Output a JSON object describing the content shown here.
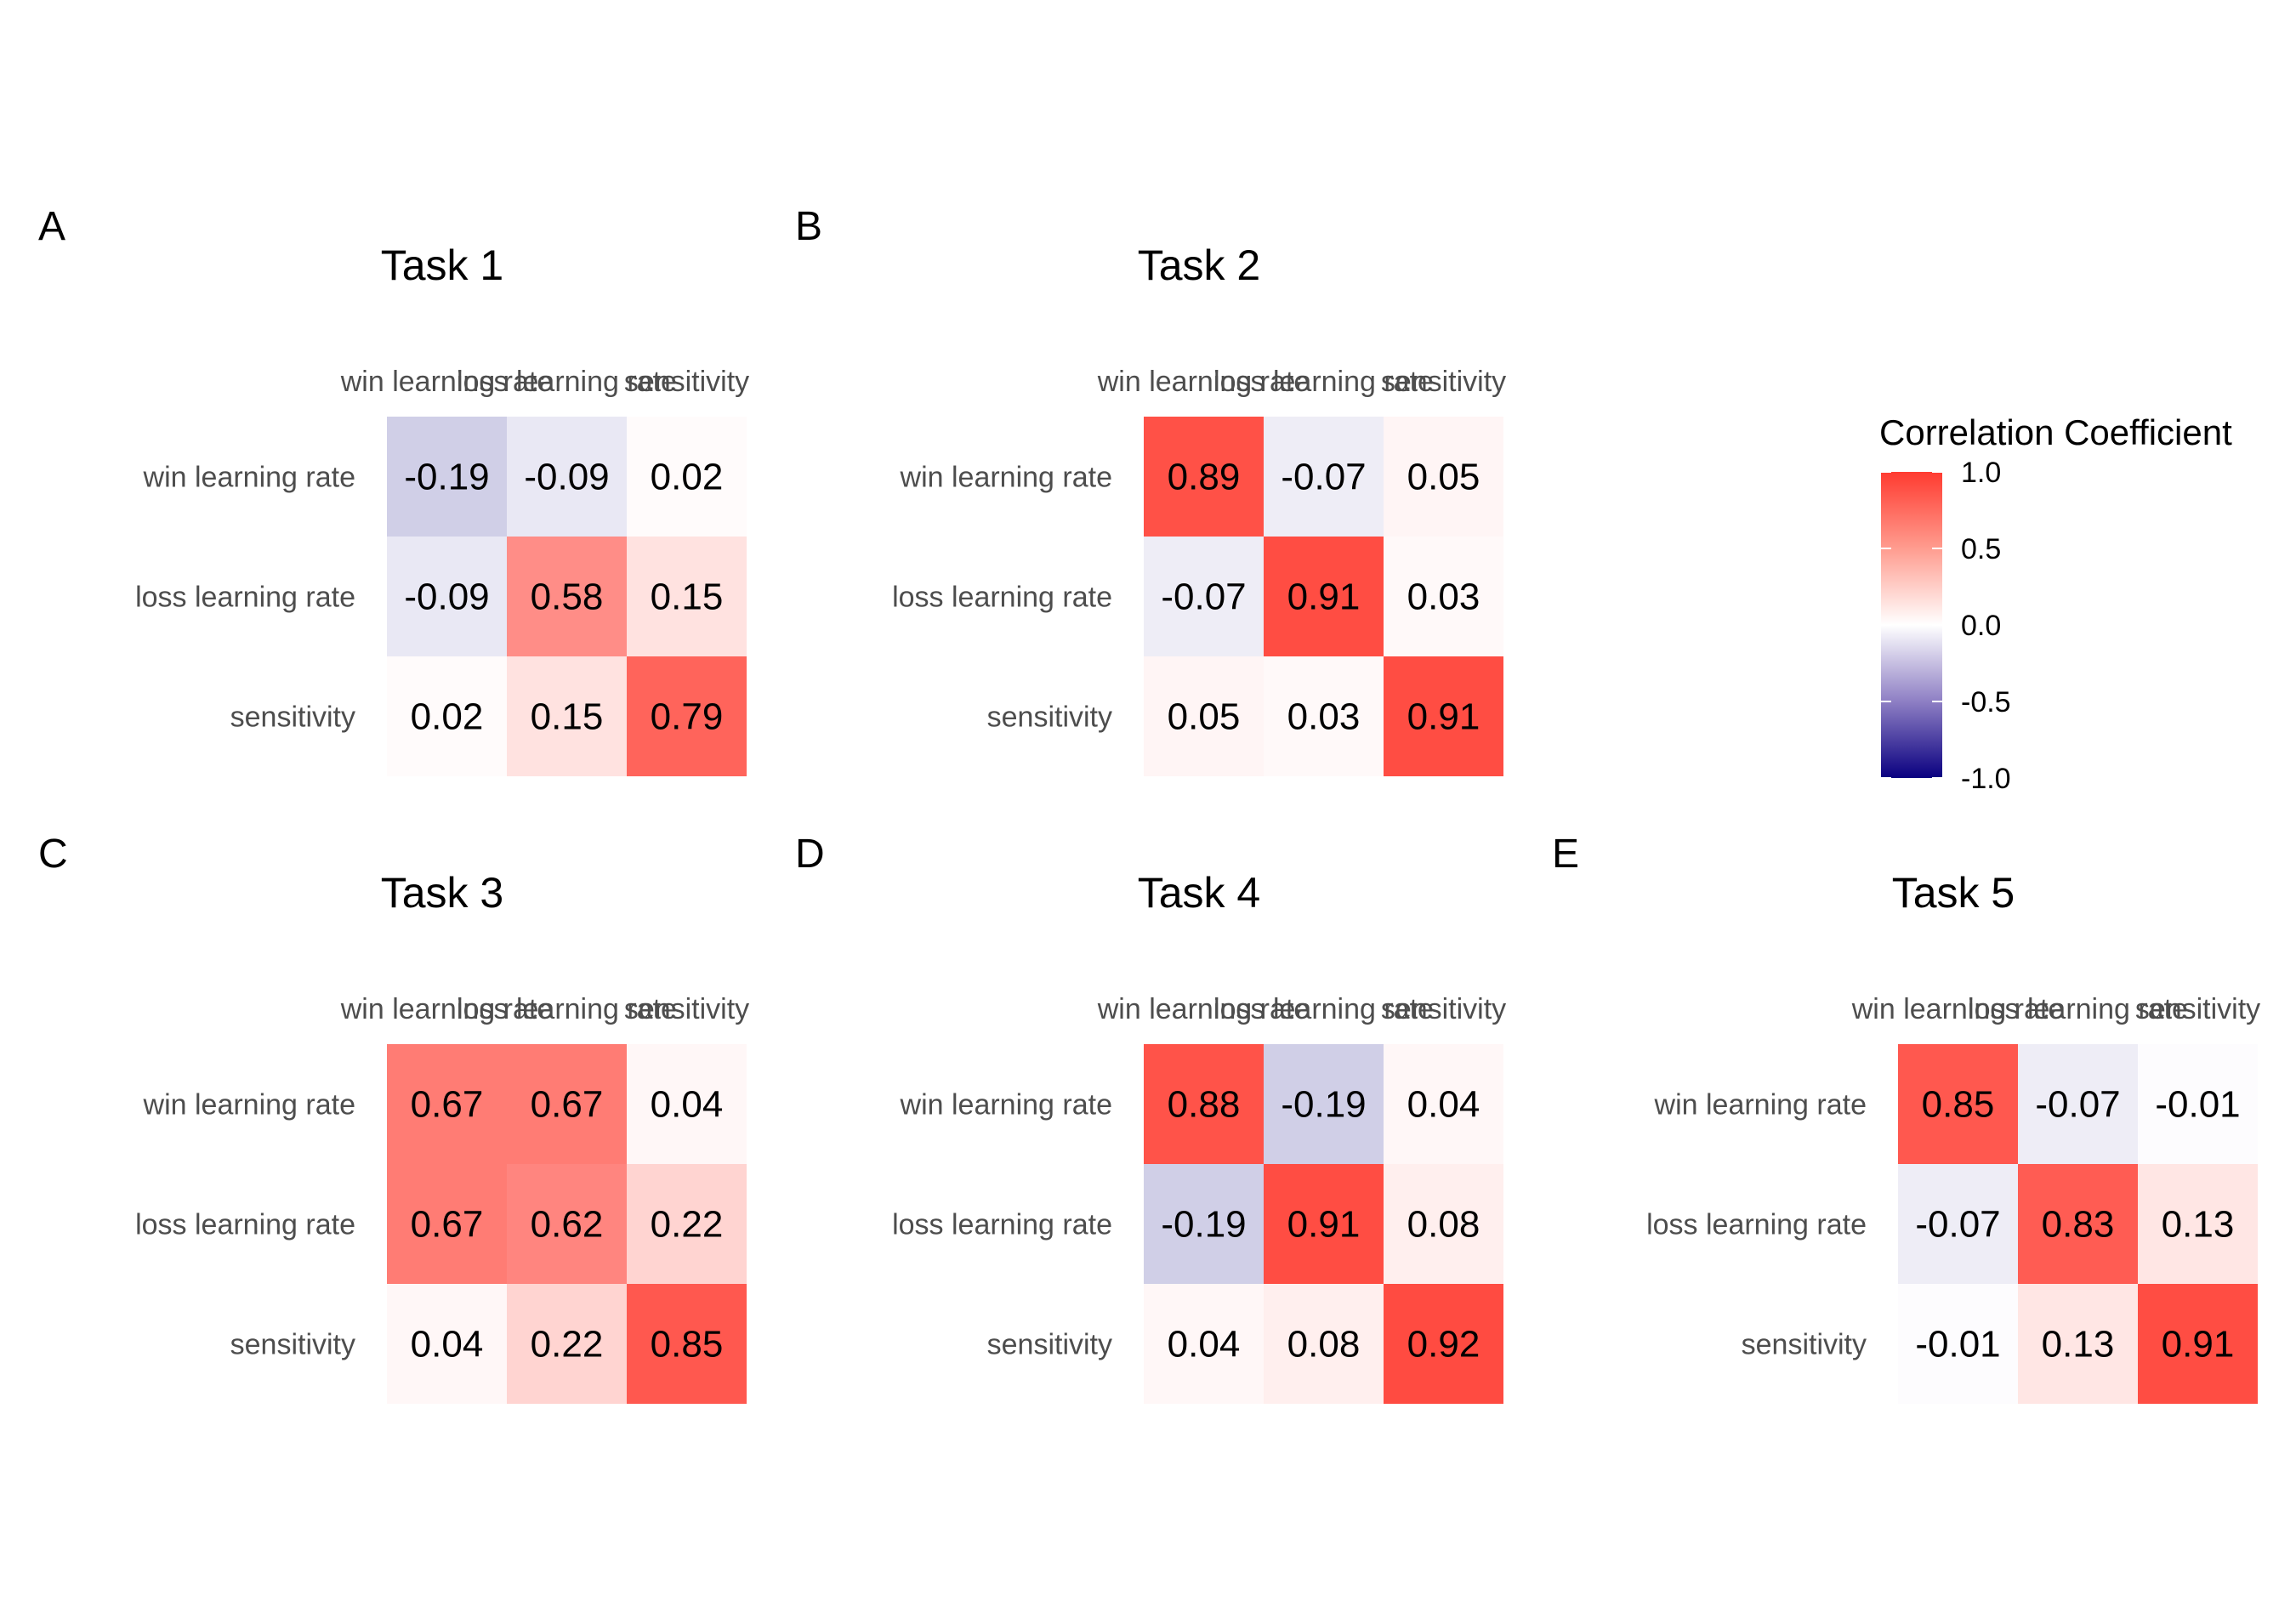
{
  "chart_data": {
    "type": "heatmap",
    "legend": {
      "title": "Correlation Coefficient",
      "placement": "right",
      "range": [
        -1.0,
        1.0
      ],
      "ticks": [
        1.0,
        0.5,
        0.0,
        -0.5,
        -1.0
      ],
      "tick_labels": [
        "1.0",
        "0.5",
        "0.0",
        "-0.5",
        "-1.0"
      ],
      "colors": {
        "low": "#0a0080",
        "mid": "#ffffff",
        "high": "#ff3b30"
      }
    },
    "panels": [
      {
        "letter": "A",
        "title": "Task 1",
        "rows": [
          "win learning rate",
          "loss learning rate",
          "sensitivity"
        ],
        "cols": [
          "win learning rate",
          "loss learning rate",
          "sensitivity"
        ],
        "values": [
          [
            -0.19,
            -0.09,
            0.02
          ],
          [
            -0.09,
            0.58,
            0.15
          ],
          [
            0.02,
            0.15,
            0.79
          ]
        ],
        "labels": [
          [
            "-0.19",
            "-0.09",
            "0.02"
          ],
          [
            "-0.09",
            "0.58",
            "0.15"
          ],
          [
            "0.02",
            "0.15",
            "0.79"
          ]
        ]
      },
      {
        "letter": "B",
        "title": "Task 2",
        "rows": [
          "win learning rate",
          "loss learning rate",
          "sensitivity"
        ],
        "cols": [
          "win learning rate",
          "loss learning rate",
          "sensitivity"
        ],
        "values": [
          [
            0.89,
            -0.07,
            0.05
          ],
          [
            -0.07,
            0.91,
            0.03
          ],
          [
            0.05,
            0.03,
            0.91
          ]
        ],
        "labels": [
          [
            "0.89",
            "-0.07",
            "0.05"
          ],
          [
            "-0.07",
            "0.91",
            "0.03"
          ],
          [
            "0.05",
            "0.03",
            "0.91"
          ]
        ]
      },
      {
        "letter": "C",
        "title": "Task 3",
        "rows": [
          "win learning rate",
          "loss learning rate",
          "sensitivity"
        ],
        "cols": [
          "win learning rate",
          "loss learning rate",
          "sensitivity"
        ],
        "values": [
          [
            0.67,
            0.67,
            0.04
          ],
          [
            0.67,
            0.62,
            0.22
          ],
          [
            0.04,
            0.22,
            0.85
          ]
        ],
        "labels": [
          [
            "0.67",
            "0.67",
            "0.04"
          ],
          [
            "0.67",
            "0.62",
            "0.22"
          ],
          [
            "0.04",
            "0.22",
            "0.85"
          ]
        ]
      },
      {
        "letter": "D",
        "title": "Task 4",
        "rows": [
          "win learning rate",
          "loss learning rate",
          "sensitivity"
        ],
        "cols": [
          "win learning rate",
          "loss learning rate",
          "sensitivity"
        ],
        "values": [
          [
            0.88,
            -0.19,
            0.04
          ],
          [
            -0.19,
            0.91,
            0.08
          ],
          [
            0.04,
            0.08,
            0.92
          ]
        ],
        "labels": [
          [
            "0.88",
            "-0.19",
            "0.04"
          ],
          [
            "-0.19",
            "0.91",
            "0.08"
          ],
          [
            "0.04",
            "0.08",
            "0.92"
          ]
        ]
      },
      {
        "letter": "E",
        "title": "Task 5",
        "rows": [
          "win learning rate",
          "loss learning rate",
          "sensitivity"
        ],
        "cols": [
          "win learning rate",
          "loss learning rate",
          "sensitivity"
        ],
        "values": [
          [
            0.85,
            -0.07,
            -0.01
          ],
          [
            -0.07,
            0.83,
            0.13
          ],
          [
            -0.01,
            0.13,
            0.91
          ]
        ],
        "labels": [
          [
            "0.85",
            "-0.07",
            "-0.01"
          ],
          [
            "-0.07",
            "0.83",
            "0.13"
          ],
          [
            "-0.01",
            "0.13",
            "0.91"
          ]
        ]
      }
    ]
  }
}
